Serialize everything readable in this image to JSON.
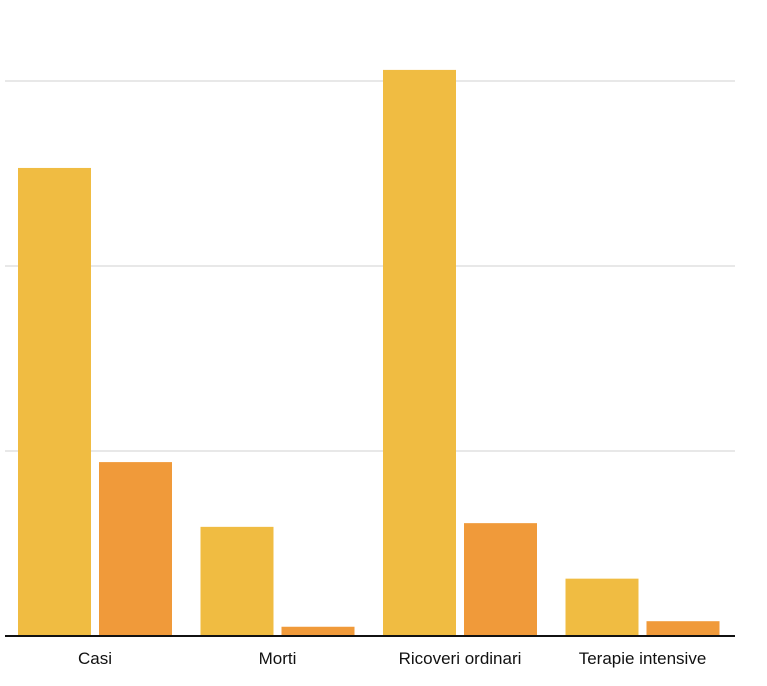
{
  "chart_data": {
    "type": "bar",
    "categories": [
      "Casi",
      "Morti",
      "Ricoveri ordinari",
      "Terapie intensive"
    ],
    "series": [
      {
        "color": "#F0BC42",
        "values": [
          2.53,
          0.59,
          3.06,
          0.31
        ]
      },
      {
        "color": "#F09A3A",
        "values": [
          0.94,
          0.05,
          0.61,
          0.08
        ]
      }
    ],
    "ylim": [
      0,
      3.0
    ],
    "gridlines": [
      1,
      2,
      3
    ],
    "grid": true,
    "legend": "none",
    "title": "",
    "xlabel": "",
    "ylabel": ""
  }
}
